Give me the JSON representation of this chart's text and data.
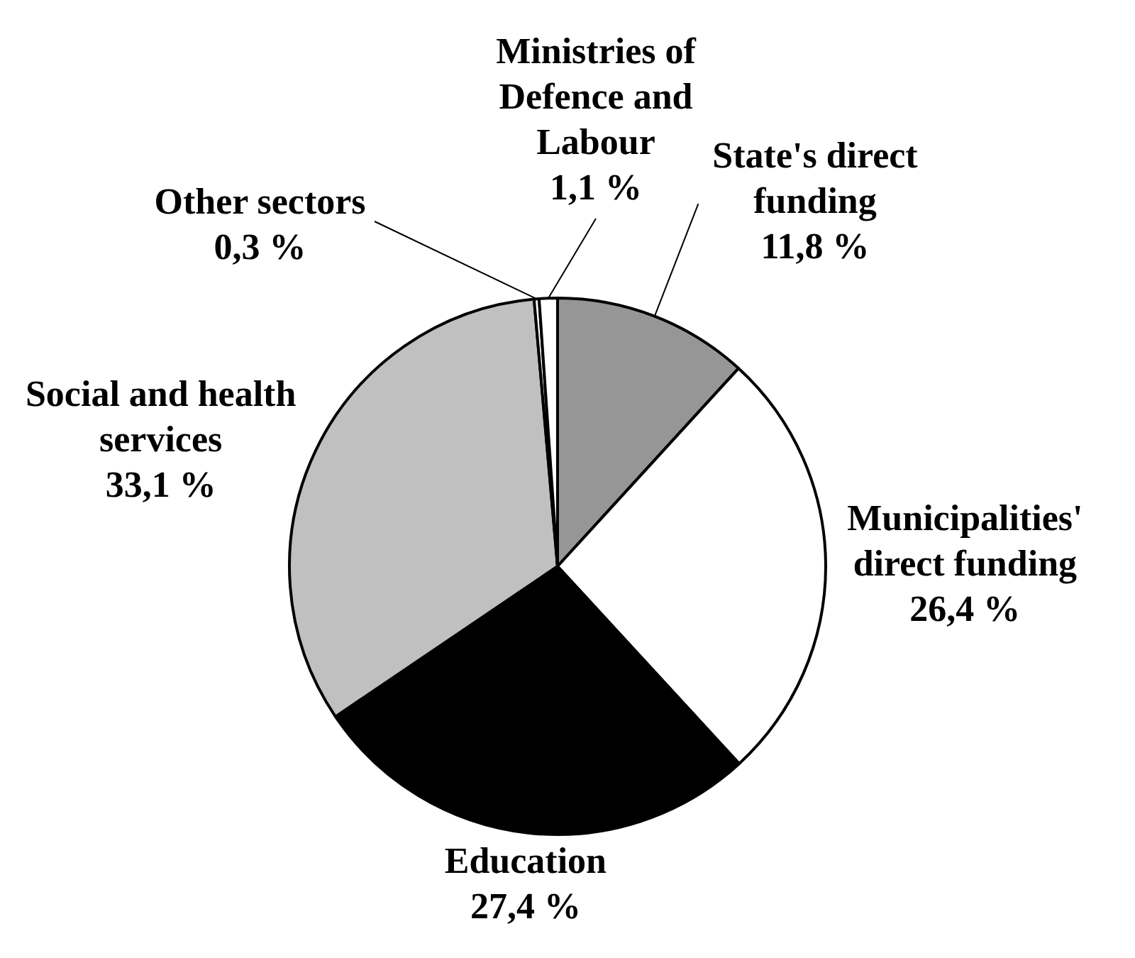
{
  "chart_data": {
    "type": "pie",
    "categories": [
      "State's direct funding",
      "Municipalities' direct funding",
      "Education",
      "Social and health services",
      "Other sectors",
      "Ministries of Defence and Labour"
    ],
    "values": [
      11.8,
      26.4,
      27.4,
      33.1,
      0.3,
      1.1
    ],
    "value_labels": [
      "11,8 %",
      "26,4 %",
      "27,4 %",
      "33,1 %",
      "0,3 %",
      "1,1 %"
    ],
    "colors": [
      "#969696",
      "#ffffff",
      "#000000",
      "#c0c0c0",
      "#ffffff",
      "#ffffff"
    ],
    "legend": false
  }
}
